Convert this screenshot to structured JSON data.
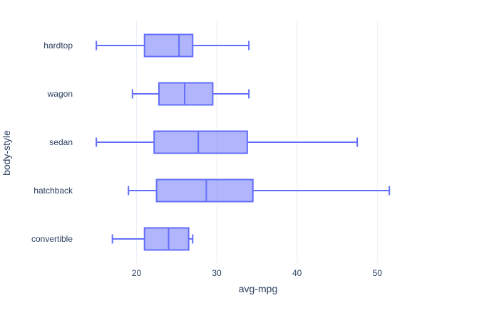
{
  "chart_data": {
    "type": "box",
    "orientation": "horizontal",
    "xlabel": "avg-mpg",
    "ylabel": "body-style",
    "xlim": [
      13.3,
      57.7
    ],
    "xticks": [
      20,
      30,
      40,
      50
    ],
    "grid": true,
    "color": "#636efa",
    "fill": "rgba(99,110,250,0.5)",
    "categories": [
      "convertible",
      "hatchback",
      "sedan",
      "wagon",
      "hardtop"
    ],
    "boxes": [
      {
        "category": "convertible",
        "lowerfence": 17,
        "q1": 21,
        "median": 24,
        "q3": 26.5,
        "upperfence": 27
      },
      {
        "category": "hatchback",
        "lowerfence": 19,
        "q1": 22.5,
        "median": 28.7,
        "q3": 34.5,
        "upperfence": 51.5
      },
      {
        "category": "sedan",
        "lowerfence": 15,
        "q1": 22.2,
        "median": 27.7,
        "q3": 33.8,
        "upperfence": 47.5
      },
      {
        "category": "wagon",
        "lowerfence": 19.5,
        "q1": 22.8,
        "median": 26,
        "q3": 29.5,
        "upperfence": 34
      },
      {
        "category": "hardtop",
        "lowerfence": 15,
        "q1": 21,
        "median": 25.3,
        "q3": 27,
        "upperfence": 34
      }
    ]
  }
}
